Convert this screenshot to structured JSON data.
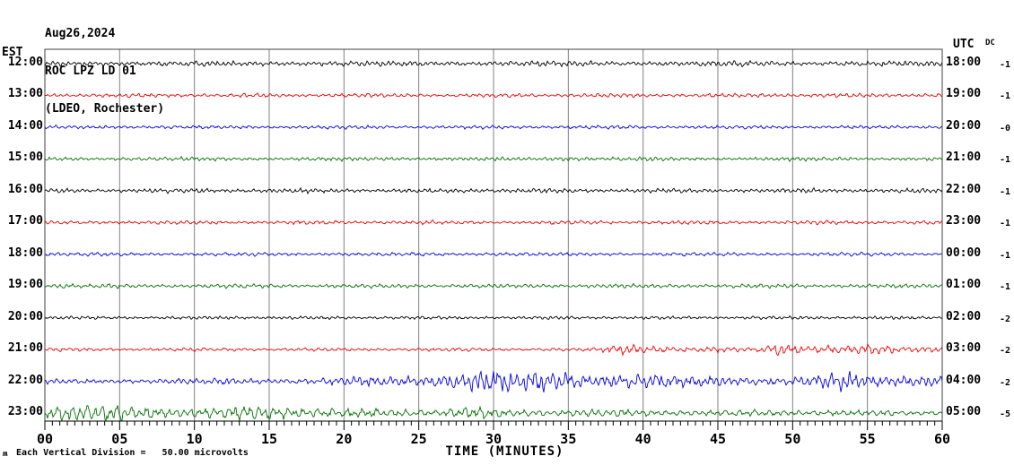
{
  "header": {
    "date": "Aug26,2024",
    "station": "ROC LPZ LD 01",
    "network": "(LDEO, Rochester)"
  },
  "axes": {
    "left_label": "EST",
    "right_label": "UTC",
    "dc_label": "DC",
    "x_title": "TIME (MINUTES)",
    "x_ticks": [
      "00",
      "05",
      "10",
      "15",
      "20",
      "25",
      "30",
      "35",
      "40",
      "45",
      "50",
      "55",
      "60"
    ],
    "footnote": "Each Vertical Division =   50.00 microvolts",
    "wiggle_glyph": "ʍ"
  },
  "colors": {
    "black": "#000000",
    "red": "#ee0000",
    "blue": "#0000e0",
    "green": "#007200",
    "grid": "#808080",
    "border": "#404040",
    "ticks": "#000000"
  },
  "chart_data": {
    "type": "line",
    "subtype": "heliplot-seismogram",
    "x_range_minutes": [
      0,
      60
    ],
    "x_tick_major_interval_min": 5,
    "x_tick_minor_interval_min": 0.5,
    "vertical_division_microvolts": 50.0,
    "rows": [
      {
        "est": "12:00",
        "utc": "18:00",
        "dc": "-1",
        "color": "black",
        "envelope": [
          2
        ]
      },
      {
        "est": "13:00",
        "utc": "19:00",
        "dc": "-1",
        "color": "red",
        "envelope": [
          1.5
        ]
      },
      {
        "est": "14:00",
        "utc": "20:00",
        "dc": "-0",
        "color": "blue",
        "envelope": [
          1.3
        ]
      },
      {
        "est": "15:00",
        "utc": "21:00",
        "dc": "-1",
        "color": "green",
        "envelope": [
          1.4,
          1.4,
          1.4,
          1.4,
          1.4,
          1.4,
          1.4,
          1.4,
          1.4,
          1.4,
          1.4,
          1.4,
          1.4,
          1.4,
          1.4,
          1.4,
          1.4,
          1.4,
          1.4,
          1.4,
          1.4,
          1.4,
          1.4,
          1.4,
          1.4,
          1.4,
          1.4,
          1.4,
          1.4,
          1.4,
          1.4,
          1.4,
          1.4,
          1.4,
          2,
          2,
          2,
          1.4,
          1.4,
          1.4,
          1.4,
          1.4,
          1.4,
          1.4,
          1.4,
          1.4,
          1.4,
          1.4,
          1.4,
          1.4,
          1.4,
          1.4,
          1.4,
          1.4,
          1.4,
          1.4,
          1.4,
          1.4,
          1.4,
          1.4,
          1.4
        ]
      },
      {
        "est": "16:00",
        "utc": "22:00",
        "dc": "-1",
        "color": "black",
        "envelope": [
          1.6
        ]
      },
      {
        "est": "17:00",
        "utc": "23:00",
        "dc": "-1",
        "color": "red",
        "envelope": [
          1.4
        ]
      },
      {
        "est": "18:00",
        "utc": "00:00",
        "dc": "-1",
        "color": "blue",
        "envelope": [
          1.3
        ]
      },
      {
        "est": "19:00",
        "utc": "01:00",
        "dc": "-1",
        "color": "green",
        "envelope": [
          1.5,
          2.6,
          1.8,
          1.5,
          1.5,
          1.5,
          1.5,
          1.5,
          1.5,
          1.5,
          1.5,
          1.5,
          1.5,
          1.5,
          1.5,
          1.5,
          1.5,
          1.5,
          1.5,
          1.5,
          1.5,
          1.5,
          1.5,
          1.5,
          1.5,
          1.5,
          1.5,
          1.5,
          1.5,
          1.5,
          1.5,
          1.5,
          1.5,
          1.5,
          1.5,
          1.5,
          1.5,
          1.5,
          1.5,
          1.5,
          1.5,
          1.5,
          1.5,
          1.5,
          1.5,
          1.5,
          1.5,
          1.5,
          1.5,
          1.5,
          1.5,
          1.5,
          1.5,
          1.5,
          1.5,
          1.5,
          1.5,
          1.5,
          1.5,
          1.5,
          1.5
        ]
      },
      {
        "est": "20:00",
        "utc": "02:00",
        "dc": "-2",
        "color": "black",
        "envelope": [
          1.2
        ]
      },
      {
        "est": "21:00",
        "utc": "03:00",
        "dc": "-2",
        "color": "red",
        "envelope": [
          1.3,
          1.3,
          1.3,
          1.3,
          1.3,
          1.3,
          1.3,
          1.3,
          1.3,
          1.3,
          1.3,
          1.3,
          1.3,
          1.3,
          1.3,
          1.3,
          1.3,
          1.3,
          1.3,
          1.3,
          1.3,
          1.3,
          1.3,
          1.3,
          1.3,
          1.3,
          1.3,
          1.3,
          1.3,
          1.3,
          1.3,
          1.3,
          1.3,
          1.3,
          1.3,
          1.3,
          1.3,
          1.3,
          3.5,
          4.5,
          4,
          3.5,
          2.8,
          2.2,
          2,
          2,
          2,
          2.2,
          2.4,
          6.5,
          4.5,
          3.5,
          3,
          2.5,
          2.5,
          4,
          4.5,
          3.5,
          3,
          3,
          2.5
        ]
      },
      {
        "est": "22:00",
        "utc": "04:00",
        "dc": "-2",
        "color": "blue",
        "envelope": [
          1.8,
          1.8,
          1.9,
          2,
          1.8,
          2,
          2,
          1.9,
          2,
          2,
          2.2,
          2.2,
          2.4,
          2.2,
          2.4,
          2.4,
          2.6,
          2.4,
          2.6,
          2.8,
          3,
          3.2,
          3.4,
          3.6,
          4,
          4.5,
          5.5,
          7,
          8.5,
          9.5,
          9,
          7.5,
          7,
          8,
          8.5,
          7.5,
          6.5,
          6,
          6.5,
          6,
          5.5,
          5,
          4.5,
          4.5,
          4,
          4.5,
          4,
          4,
          3.6,
          3.5,
          3.6,
          4,
          5,
          6,
          6.5,
          5.5,
          5,
          5.5,
          5,
          5.5,
          5
        ]
      },
      {
        "est": "23:00",
        "utc": "05:00",
        "dc": "-5",
        "color": "green",
        "envelope": [
          6,
          6.5,
          6,
          5.5,
          6,
          6,
          5.5,
          6,
          5,
          4,
          3.5,
          3.2,
          3.5,
          5,
          6,
          6.5,
          6,
          5,
          4,
          3.5,
          3,
          3,
          3,
          3.2,
          3.5,
          3.5,
          3.2,
          3.5,
          4,
          4,
          3.5,
          3,
          3,
          3,
          3,
          3.2,
          3,
          3,
          2.8,
          2.8,
          2.5,
          2.5,
          2.5,
          2.5,
          2.4,
          2.2,
          2.2,
          2.2,
          2.2,
          2.2,
          2.4,
          2.5,
          2.5,
          2.4,
          2.2,
          2.2,
          2,
          2,
          2,
          2,
          2
        ]
      }
    ]
  }
}
